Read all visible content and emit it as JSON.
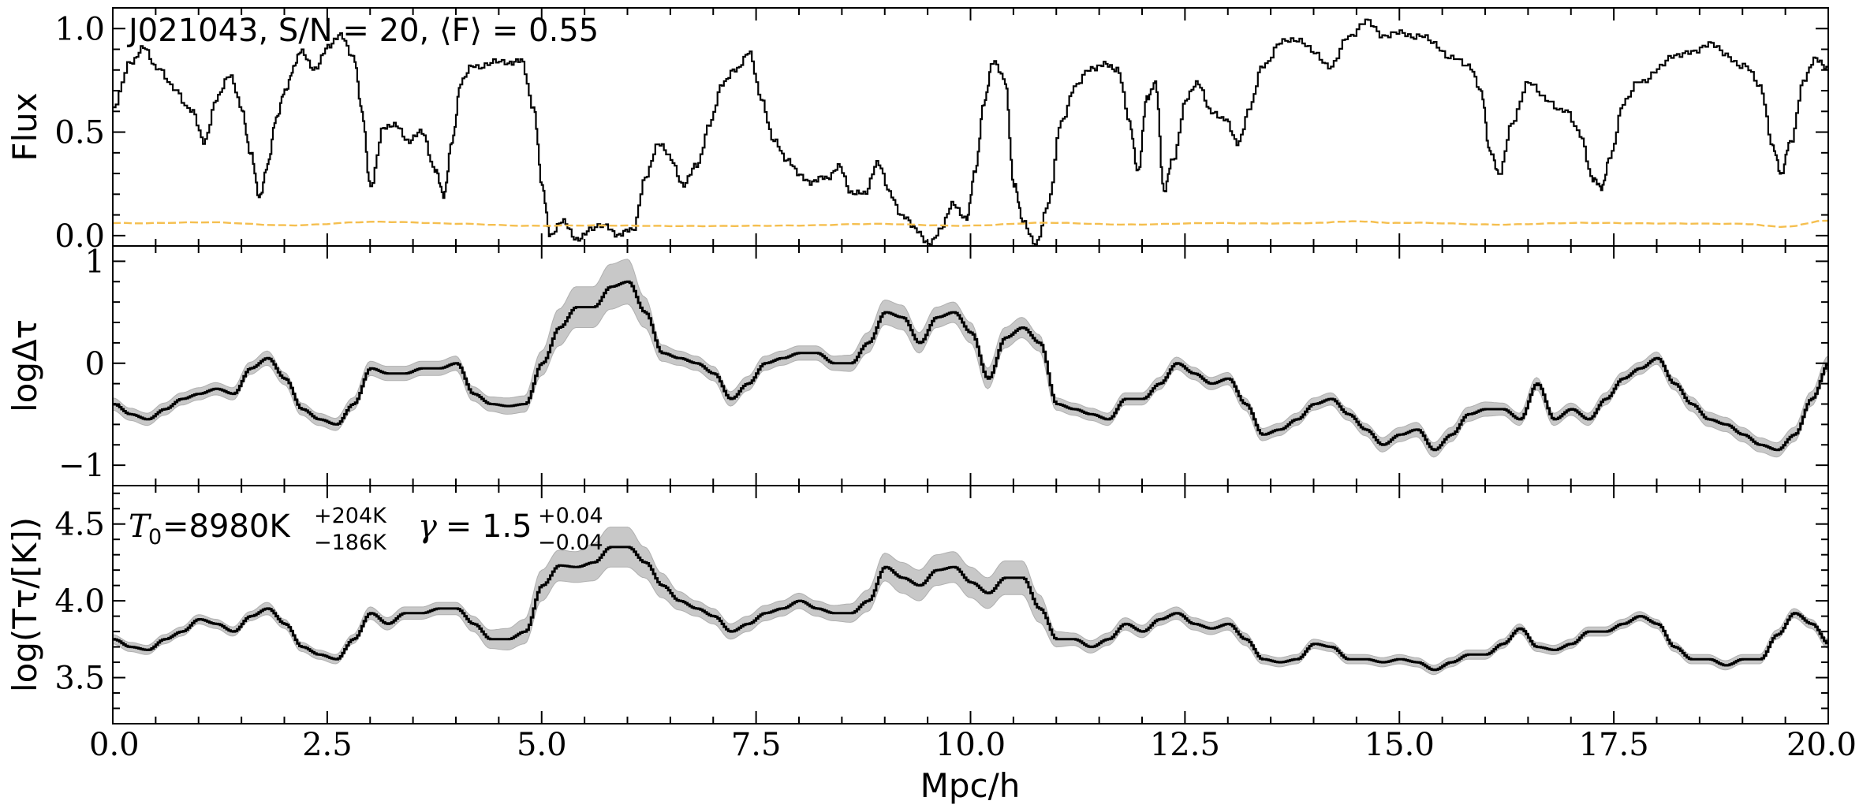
{
  "chart_data": [
    {
      "panel": "top",
      "type": "line",
      "title": "J021043, S/N = 20, ⟨F⟩ = 0.55",
      "xlabel": "",
      "ylabel": "Flux",
      "xlim": [
        0,
        20
      ],
      "ylim": [
        -0.05,
        1.1
      ],
      "yticks": [
        0.0,
        0.5,
        1.0
      ],
      "ytick_labels": [
        "0.0",
        "0.5",
        "1.0"
      ],
      "series": [
        {
          "role": "flux",
          "style": "black step",
          "x": [
            0.0,
            0.2,
            0.35,
            0.5,
            0.7,
            0.9,
            1.05,
            1.2,
            1.35,
            1.5,
            1.6,
            1.7,
            1.8,
            1.9,
            2.0,
            2.1,
            2.2,
            2.35,
            2.5,
            2.65,
            2.8,
            2.9,
            3.0,
            3.15,
            3.3,
            3.45,
            3.6,
            3.75,
            3.85,
            3.95,
            4.05,
            4.2,
            4.4,
            4.6,
            4.75,
            4.9,
            5.0,
            5.1,
            5.25,
            5.4,
            5.55,
            5.75,
            5.9,
            6.05,
            6.2,
            6.35,
            6.5,
            6.65,
            6.8,
            6.95,
            7.1,
            7.25,
            7.4,
            7.55,
            7.7,
            7.85,
            8.0,
            8.15,
            8.3,
            8.45,
            8.6,
            8.75,
            8.9,
            9.05,
            9.2,
            9.35,
            9.5,
            9.65,
            9.8,
            9.95,
            10.05,
            10.15,
            10.25,
            10.4,
            10.5,
            10.6,
            10.75,
            10.9,
            11.05,
            11.2,
            11.4,
            11.55,
            11.7,
            11.85,
            11.95,
            12.05,
            12.15,
            12.25,
            12.35,
            12.5,
            12.65,
            12.8,
            12.95,
            13.1,
            13.25,
            13.4,
            13.6,
            13.8,
            14.0,
            14.2,
            14.4,
            14.6,
            14.8,
            15.0,
            15.2,
            15.4,
            15.6,
            15.8,
            15.95,
            16.05,
            16.15,
            16.3,
            16.5,
            16.7,
            16.9,
            17.1,
            17.25,
            17.35,
            17.45,
            17.6,
            17.8,
            18.0,
            18.2,
            18.4,
            18.6,
            18.8,
            19.0,
            19.2,
            19.35,
            19.45,
            19.55,
            19.7,
            19.85,
            20.0
          ],
          "y": [
            0.62,
            0.82,
            0.93,
            0.8,
            0.72,
            0.6,
            0.45,
            0.68,
            0.75,
            0.62,
            0.4,
            0.18,
            0.35,
            0.55,
            0.72,
            0.8,
            0.88,
            0.82,
            0.9,
            0.98,
            0.85,
            0.6,
            0.25,
            0.5,
            0.55,
            0.45,
            0.5,
            0.32,
            0.18,
            0.48,
            0.72,
            0.82,
            0.85,
            0.82,
            0.86,
            0.6,
            0.25,
            0.0,
            0.05,
            0.0,
            0.02,
            0.05,
            0.0,
            0.02,
            0.3,
            0.42,
            0.38,
            0.25,
            0.33,
            0.55,
            0.72,
            0.82,
            0.88,
            0.65,
            0.48,
            0.35,
            0.3,
            0.25,
            0.28,
            0.35,
            0.18,
            0.22,
            0.35,
            0.2,
            0.1,
            0.02,
            -0.02,
            0.02,
            0.15,
            0.1,
            0.3,
            0.65,
            0.83,
            0.75,
            0.25,
            0.05,
            -0.02,
            0.15,
            0.55,
            0.72,
            0.8,
            0.85,
            0.78,
            0.55,
            0.32,
            0.65,
            0.75,
            0.2,
            0.38,
            0.65,
            0.72,
            0.62,
            0.55,
            0.45,
            0.62,
            0.82,
            0.95,
            0.92,
            0.9,
            0.82,
            0.95,
            1.05,
            0.95,
            1.0,
            0.95,
            0.92,
            0.88,
            0.8,
            0.7,
            0.4,
            0.3,
            0.55,
            0.72,
            0.68,
            0.6,
            0.48,
            0.28,
            0.22,
            0.4,
            0.62,
            0.75,
            0.82,
            0.85,
            0.9,
            0.92,
            0.88,
            0.82,
            0.7,
            0.45,
            0.28,
            0.45,
            0.75,
            0.85,
            0.82
          ]
        },
        {
          "role": "flux-error",
          "style": "orange dashed",
          "x": [
            0.0,
            1.0,
            2.0,
            3.0,
            4.0,
            5.0,
            6.0,
            7.0,
            8.0,
            9.0,
            10.0,
            11.0,
            12.0,
            13.0,
            14.0,
            14.6,
            15.0,
            16.0,
            17.0,
            18.0,
            19.0,
            19.5,
            20.0
          ],
          "y": [
            0.06,
            0.065,
            0.05,
            0.065,
            0.06,
            0.045,
            0.05,
            0.045,
            0.05,
            0.055,
            0.05,
            0.06,
            0.055,
            0.06,
            0.06,
            0.07,
            0.06,
            0.055,
            0.06,
            0.06,
            0.055,
            0.045,
            0.07
          ]
        }
      ]
    },
    {
      "panel": "middle",
      "type": "area",
      "title": "",
      "xlabel": "",
      "ylabel": "logΔτ",
      "xlim": [
        0,
        20
      ],
      "ylim": [
        -1.2,
        1.15
      ],
      "yticks": [
        -1,
        0,
        1
      ],
      "ytick_labels": [
        "−1",
        "0",
        "1"
      ],
      "x": [
        0.0,
        0.2,
        0.4,
        0.6,
        0.8,
        1.0,
        1.2,
        1.4,
        1.6,
        1.8,
        2.0,
        2.2,
        2.4,
        2.6,
        2.8,
        3.0,
        3.2,
        3.4,
        3.6,
        3.8,
        4.0,
        4.2,
        4.4,
        4.6,
        4.8,
        5.0,
        5.2,
        5.4,
        5.6,
        5.8,
        6.0,
        6.2,
        6.4,
        6.6,
        6.8,
        7.0,
        7.2,
        7.4,
        7.6,
        7.8,
        8.0,
        8.2,
        8.4,
        8.6,
        8.8,
        9.0,
        9.2,
        9.4,
        9.6,
        9.8,
        10.0,
        10.2,
        10.4,
        10.6,
        10.8,
        11.0,
        11.2,
        11.4,
        11.6,
        11.8,
        12.0,
        12.2,
        12.4,
        12.6,
        12.8,
        13.0,
        13.2,
        13.4,
        13.6,
        13.8,
        14.0,
        14.2,
        14.4,
        14.6,
        14.8,
        15.0,
        15.2,
        15.4,
        15.6,
        15.8,
        16.0,
        16.2,
        16.4,
        16.6,
        16.8,
        17.0,
        17.2,
        17.4,
        17.6,
        17.8,
        18.0,
        18.2,
        18.4,
        18.6,
        18.8,
        19.0,
        19.2,
        19.4,
        19.6,
        19.8,
        20.0
      ],
      "series": [
        {
          "name": "",
          "role": "median",
          "values": [
            -0.4,
            -0.5,
            -0.55,
            -0.45,
            -0.35,
            -0.3,
            -0.25,
            -0.3,
            -0.05,
            0.05,
            -0.15,
            -0.45,
            -0.55,
            -0.6,
            -0.4,
            -0.05,
            -0.1,
            -0.1,
            -0.05,
            -0.05,
            0.0,
            -0.3,
            -0.4,
            -0.42,
            -0.4,
            0.0,
            0.35,
            0.55,
            0.55,
            0.75,
            0.8,
            0.5,
            0.1,
            0.05,
            0.0,
            -0.1,
            -0.35,
            -0.2,
            0.0,
            0.05,
            0.1,
            0.1,
            0.0,
            0.0,
            0.2,
            0.5,
            0.45,
            0.2,
            0.45,
            0.5,
            0.3,
            -0.15,
            0.25,
            0.35,
            0.2,
            -0.4,
            -0.45,
            -0.5,
            -0.55,
            -0.35,
            -0.35,
            -0.2,
            0.0,
            -0.1,
            -0.2,
            -0.15,
            -0.4,
            -0.7,
            -0.65,
            -0.55,
            -0.4,
            -0.35,
            -0.5,
            -0.65,
            -0.8,
            -0.7,
            -0.65,
            -0.85,
            -0.7,
            -0.5,
            -0.45,
            -0.45,
            -0.55,
            -0.2,
            -0.55,
            -0.45,
            -0.55,
            -0.35,
            -0.15,
            -0.05,
            0.05,
            -0.2,
            -0.4,
            -0.55,
            -0.6,
            -0.7,
            -0.8,
            -0.85,
            -0.7,
            -0.35,
            0.0
          ]
        },
        {
          "name": "",
          "role": "band-halfwidth",
          "values": [
            0.06,
            0.06,
            0.06,
            0.06,
            0.06,
            0.06,
            0.06,
            0.06,
            0.06,
            0.07,
            0.06,
            0.06,
            0.06,
            0.06,
            0.06,
            0.07,
            0.07,
            0.07,
            0.07,
            0.07,
            0.07,
            0.07,
            0.07,
            0.08,
            0.08,
            0.12,
            0.18,
            0.2,
            0.2,
            0.22,
            0.22,
            0.15,
            0.08,
            0.07,
            0.07,
            0.07,
            0.07,
            0.07,
            0.07,
            0.07,
            0.07,
            0.07,
            0.07,
            0.08,
            0.1,
            0.12,
            0.12,
            0.1,
            0.1,
            0.1,
            0.1,
            0.1,
            0.1,
            0.1,
            0.08,
            0.06,
            0.06,
            0.06,
            0.06,
            0.06,
            0.06,
            0.06,
            0.06,
            0.06,
            0.06,
            0.06,
            0.06,
            0.06,
            0.06,
            0.06,
            0.06,
            0.06,
            0.06,
            0.06,
            0.07,
            0.07,
            0.07,
            0.07,
            0.07,
            0.07,
            0.07,
            0.06,
            0.06,
            0.06,
            0.06,
            0.06,
            0.06,
            0.06,
            0.06,
            0.06,
            0.06,
            0.06,
            0.07,
            0.07,
            0.07,
            0.07,
            0.07,
            0.07,
            0.07,
            0.07,
            0.07
          ]
        }
      ]
    },
    {
      "panel": "bottom",
      "type": "area",
      "title": "",
      "xlabel": "Mpc/h",
      "ylabel": "log(Tτ/[K])",
      "xlim": [
        0,
        20
      ],
      "ylim": [
        3.2,
        4.75
      ],
      "yticks": [
        3.5,
        4.0,
        4.5
      ],
      "ytick_labels": [
        "3.5",
        "4.0",
        "4.5"
      ],
      "xticks": [
        0.0,
        2.5,
        5.0,
        7.5,
        10.0,
        12.5,
        15.0,
        17.5,
        20.0
      ],
      "xtick_labels": [
        "0.0",
        "2.5",
        "5.0",
        "7.5",
        "10.0",
        "12.5",
        "15.0",
        "17.5",
        "20.0"
      ],
      "annotation": {
        "T0_symbol": "T",
        "T0_sub": "0",
        "T0_value": "=8980K",
        "T0_upper": "+204K",
        "T0_lower": "−186K",
        "gamma_symbol": "γ",
        "gamma_value": " = 1.5",
        "gamma_upper": "+0.04",
        "gamma_lower": "−0.04"
      },
      "x": [
        0.0,
        0.2,
        0.4,
        0.6,
        0.8,
        1.0,
        1.2,
        1.4,
        1.6,
        1.8,
        2.0,
        2.2,
        2.4,
        2.6,
        2.8,
        3.0,
        3.2,
        3.4,
        3.6,
        3.8,
        4.0,
        4.2,
        4.4,
        4.6,
        4.8,
        5.0,
        5.2,
        5.4,
        5.6,
        5.8,
        6.0,
        6.2,
        6.4,
        6.6,
        6.8,
        7.0,
        7.2,
        7.4,
        7.6,
        7.8,
        8.0,
        8.2,
        8.4,
        8.6,
        8.8,
        9.0,
        9.2,
        9.4,
        9.6,
        9.8,
        10.0,
        10.2,
        10.4,
        10.6,
        10.8,
        11.0,
        11.2,
        11.4,
        11.6,
        11.8,
        12.0,
        12.2,
        12.4,
        12.6,
        12.8,
        13.0,
        13.2,
        13.4,
        13.6,
        13.8,
        14.0,
        14.2,
        14.4,
        14.6,
        14.8,
        15.0,
        15.2,
        15.4,
        15.6,
        15.8,
        16.0,
        16.2,
        16.4,
        16.6,
        16.8,
        17.0,
        17.2,
        17.4,
        17.6,
        17.8,
        18.0,
        18.2,
        18.4,
        18.6,
        18.8,
        19.0,
        19.2,
        19.4,
        19.6,
        19.8,
        20.0
      ],
      "series": [
        {
          "name": "",
          "role": "median",
          "values": [
            3.75,
            3.7,
            3.68,
            3.75,
            3.8,
            3.88,
            3.85,
            3.8,
            3.9,
            3.95,
            3.85,
            3.7,
            3.65,
            3.62,
            3.75,
            3.92,
            3.85,
            3.92,
            3.92,
            3.95,
            3.95,
            3.85,
            3.75,
            3.75,
            3.8,
            4.1,
            4.23,
            4.22,
            4.25,
            4.35,
            4.35,
            4.25,
            4.1,
            4.0,
            3.95,
            3.9,
            3.8,
            3.85,
            3.92,
            3.95,
            4.0,
            3.95,
            3.92,
            3.92,
            4.0,
            4.22,
            4.15,
            4.1,
            4.2,
            4.22,
            4.12,
            4.05,
            4.15,
            4.15,
            3.95,
            3.75,
            3.75,
            3.7,
            3.75,
            3.85,
            3.8,
            3.88,
            3.92,
            3.85,
            3.82,
            3.85,
            3.75,
            3.62,
            3.6,
            3.62,
            3.72,
            3.7,
            3.62,
            3.62,
            3.6,
            3.62,
            3.6,
            3.55,
            3.6,
            3.65,
            3.65,
            3.72,
            3.82,
            3.7,
            3.68,
            3.72,
            3.8,
            3.8,
            3.85,
            3.9,
            3.85,
            3.7,
            3.62,
            3.62,
            3.58,
            3.62,
            3.62,
            3.78,
            3.92,
            3.85,
            3.72
          ]
        },
        {
          "name": "",
          "role": "band-halfwidth",
          "values": [
            0.03,
            0.03,
            0.03,
            0.03,
            0.03,
            0.03,
            0.03,
            0.03,
            0.03,
            0.04,
            0.03,
            0.03,
            0.03,
            0.03,
            0.03,
            0.04,
            0.04,
            0.04,
            0.04,
            0.04,
            0.04,
            0.05,
            0.06,
            0.07,
            0.08,
            0.1,
            0.1,
            0.1,
            0.12,
            0.13,
            0.13,
            0.1,
            0.08,
            0.06,
            0.05,
            0.05,
            0.05,
            0.05,
            0.05,
            0.05,
            0.05,
            0.05,
            0.05,
            0.06,
            0.07,
            0.09,
            0.1,
            0.1,
            0.1,
            0.1,
            0.1,
            0.1,
            0.11,
            0.11,
            0.09,
            0.05,
            0.04,
            0.04,
            0.04,
            0.04,
            0.04,
            0.04,
            0.04,
            0.04,
            0.04,
            0.04,
            0.04,
            0.03,
            0.03,
            0.03,
            0.03,
            0.03,
            0.03,
            0.03,
            0.03,
            0.03,
            0.03,
            0.03,
            0.03,
            0.03,
            0.03,
            0.03,
            0.03,
            0.03,
            0.03,
            0.03,
            0.03,
            0.03,
            0.03,
            0.03,
            0.03,
            0.03,
            0.03,
            0.03,
            0.03,
            0.03,
            0.03,
            0.03,
            0.03,
            0.03,
            0.03
          ]
        }
      ]
    }
  ]
}
